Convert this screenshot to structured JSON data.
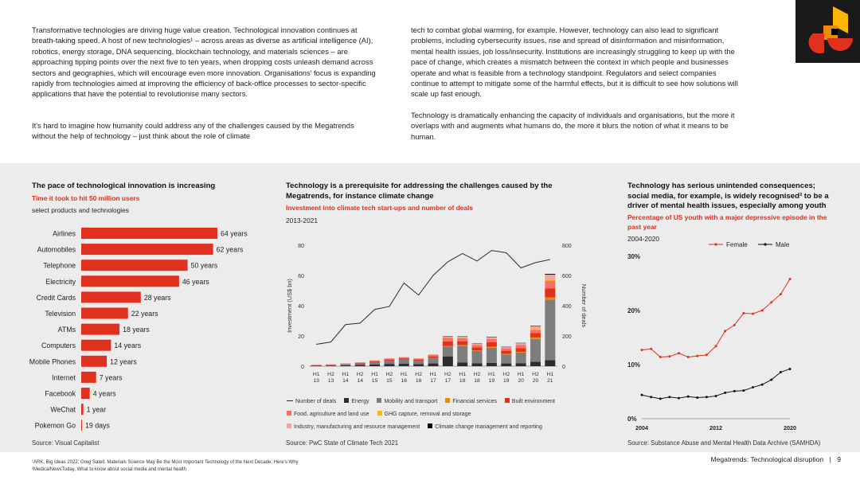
{
  "intro": {
    "col1_p1": "Transformative technologies are driving huge value creation. Technological innovation continues at breath-taking speed. A host of new technologies¹ – across areas as diverse as artificial intelligence (AI), robotics, energy storage, DNA sequencing, blockchain technology, and materials sciences – are approaching tipping points over the next five to ten years, when dropping costs unleash demand across sectors and geographies, which will encourage even more innovation. Organisations' focus is expanding rapidly from technologies aimed at improving the efficiency of back-office processes to sector-specific applications that have the potential to revolutionise many sectors.",
    "col1_p2": "It's hard to imagine how humanity could address any of the challenges caused by the Megatrends without the help of technology – just think about the role of climate",
    "col2_p1": "tech to combat global warming, for example. However, technology can also lead to significant problems, including cybersecurity issues, rise and spread of disinformation and misinformation, mental health issues, job loss/insecurity. Institutions are increasingly struggling to keep up with the pace of change, which creates a mismatch between the context in which people and businesses operate and what is feasible from a technology standpoint. Regulators and select companies continue to attempt to mitigate some of the harmful effects, but it is difficult to see how solutions will scale up fast enough.",
    "col2_p2": "Technology is dramatically enhancing the capacity of individuals and organisations, but the more it overlaps with and augments what humans do, the more it blurs the notion of what it means to be human."
  },
  "footnotes": {
    "fn1": "¹ARK, Big Ideas 2022; Greg Satell, Materials Science May Be the Most Important Technology of the Next Decade, Here's Why",
    "fn2": "²MedicalNewsToday, What to know about social media and mental health"
  },
  "footer": {
    "text": "Megatrends: Technological disruption",
    "separator": "|",
    "page": "9"
  },
  "colors": {
    "accent": "#e0301e",
    "orange": "#eb8c00",
    "dark": "#2d2d2d",
    "panel": "#ececec"
  },
  "chart_data": [
    {
      "type": "bar",
      "orientation": "horizontal",
      "title": "The pace of technological innovation is increasing",
      "subtitle": "Time it took to hit 50 million users",
      "note": "select products and technologies",
      "source": "Source: Visual Capitalist",
      "unit": "years",
      "categories": [
        "Airlines",
        "Automobiles",
        "Telephone",
        "Electricity",
        "Credit Cards",
        "Television",
        "ATMs",
        "Computers",
        "Mobile Phones",
        "Internet",
        "Facebook",
        "WeChat",
        "Pokemon Go"
      ],
      "values": [
        64,
        62,
        50,
        46,
        28,
        22,
        18,
        14,
        12,
        7,
        4,
        1,
        0.05
      ],
      "labels": [
        "64 years",
        "62 years",
        "50 years",
        "46 years",
        "28 years",
        "22 years",
        "18 years",
        "14 years",
        "12 years",
        "7 years",
        "4 years",
        "1 year",
        "19 days"
      ]
    },
    {
      "type": "bar",
      "stacked": true,
      "title": "Technology is a prerequisite for addressing the challenges caused by the Megatrends, for instance climate change",
      "subtitle": "Investment into climate tech start-ups and number of deals",
      "note": "2013-2021",
      "source": "Source: PwC State of Climate Tech 2021",
      "ylabel": "Investment (US$ bn)",
      "y2label": "Number of deals",
      "ylim": [
        0,
        80
      ],
      "y2lim": [
        0,
        800
      ],
      "yticks": [
        0,
        20,
        40,
        60,
        80
      ],
      "y2ticks": [
        0,
        200,
        400,
        600,
        800
      ],
      "categories_top": [
        "H1",
        "H2",
        "H1",
        "H2",
        "H1",
        "H2",
        "H1",
        "H2",
        "H1",
        "H2",
        "H1",
        "H2",
        "H1",
        "H2",
        "H1",
        "H2",
        "H1"
      ],
      "categories_bottom": [
        "13",
        "13",
        "14",
        "14",
        "15",
        "15",
        "16",
        "16",
        "17",
        "17",
        "18",
        "18",
        "19",
        "19",
        "20",
        "20",
        "21"
      ],
      "series": [
        {
          "name": "Energy",
          "color": "#2d2d2d",
          "values": [
            0.3,
            0.4,
            0.6,
            0.8,
            1.2,
            1.5,
            1.6,
            1.4,
            1.8,
            6.5,
            2.5,
            2.0,
            2.2,
            1.8,
            2.0,
            3.0,
            4.0
          ]
        },
        {
          "name": "Mobility and transport",
          "color": "#7d7d7d",
          "values": [
            0.2,
            0.3,
            0.6,
            0.9,
            1.5,
            2.2,
            2.8,
            2.3,
            3.5,
            6.5,
            11,
            8,
            10,
            6,
            7,
            15,
            40
          ]
        },
        {
          "name": "Financial services",
          "color": "#eb8c00",
          "values": [
            0,
            0,
            0,
            0,
            0,
            0,
            0,
            0,
            0.2,
            0.3,
            0.5,
            0.4,
            0.6,
            0.4,
            0.5,
            1.0,
            1.5
          ]
        },
        {
          "name": "Built environment",
          "color": "#e0301e",
          "values": [
            0.2,
            0.3,
            0.3,
            0.4,
            0.6,
            0.7,
            0.8,
            0.7,
            1.0,
            3.0,
            2.5,
            2.0,
            3.0,
            2.0,
            2.5,
            3.0,
            6.0
          ]
        },
        {
          "name": "Food, agriculture and land use",
          "color": "#f87060",
          "values": [
            0.2,
            0.2,
            0.3,
            0.4,
            0.5,
            0.6,
            0.7,
            0.6,
            1.0,
            2.5,
            2.0,
            1.6,
            2.2,
            1.6,
            2.0,
            2.0,
            5.0
          ]
        },
        {
          "name": "GHG capture, removal and storage",
          "color": "#ffb600",
          "values": [
            0,
            0,
            0,
            0,
            0,
            0,
            0,
            0,
            0,
            0.1,
            0.1,
            0.1,
            0.2,
            0.1,
            0.2,
            0.3,
            1.0
          ]
        },
        {
          "name": "Industry, manufacturing and resource management",
          "color": "#f4a3a3",
          "values": [
            0,
            0,
            0.1,
            0.1,
            0.1,
            0.2,
            0.2,
            0.2,
            0.4,
            0.8,
            1.0,
            0.8,
            1.2,
            0.8,
            1.0,
            2.0,
            3.0
          ]
        },
        {
          "name": "Climate change management and reporting",
          "color": "#000000",
          "values": [
            0,
            0,
            0,
            0,
            0,
            0,
            0,
            0,
            0,
            0.1,
            0.1,
            0.1,
            0.1,
            0.1,
            0.2,
            0.3,
            0.5
          ]
        }
      ],
      "line": {
        "name": "Number of deals",
        "color": "#2d2d2d",
        "values": [
          145,
          160,
          275,
          285,
          375,
          395,
          550,
          470,
          600,
          690,
          745,
          695,
          765,
          750,
          650,
          685,
          705
        ]
      }
    },
    {
      "type": "line",
      "title": "Technology has serious unintended consequences; social media, for example, is widely recognised² to be a driver of mental health issues, especially among youth",
      "subtitle": "Percentage of US youth with a major depressive episode in the past year",
      "note": "2004-2020",
      "source": "Source: Substance Abuse and Mental Health Data Archive (SAMHDA)",
      "x": [
        2004,
        2005,
        2006,
        2007,
        2008,
        2009,
        2010,
        2011,
        2012,
        2013,
        2014,
        2015,
        2016,
        2017,
        2018,
        2019,
        2020
      ],
      "xticks": [
        "2004",
        "2012",
        "2020"
      ],
      "yticks": [
        "0%",
        "10%",
        "20%",
        "30%"
      ],
      "ylim": [
        0,
        30
      ],
      "series": [
        {
          "name": "Female",
          "color": "#e0301e",
          "values": [
            12.7,
            12.9,
            11.4,
            11.5,
            12.1,
            11.4,
            11.6,
            11.8,
            13.4,
            16.2,
            17.3,
            19.5,
            19.4,
            20.0,
            21.5,
            23.0,
            25.8
          ]
        },
        {
          "name": "Male",
          "color": "#111111",
          "values": [
            4.4,
            4.0,
            3.7,
            4.0,
            3.8,
            4.1,
            3.9,
            4.0,
            4.2,
            4.8,
            5.1,
            5.2,
            5.8,
            6.3,
            7.2,
            8.6,
            9.2
          ]
        }
      ]
    }
  ]
}
